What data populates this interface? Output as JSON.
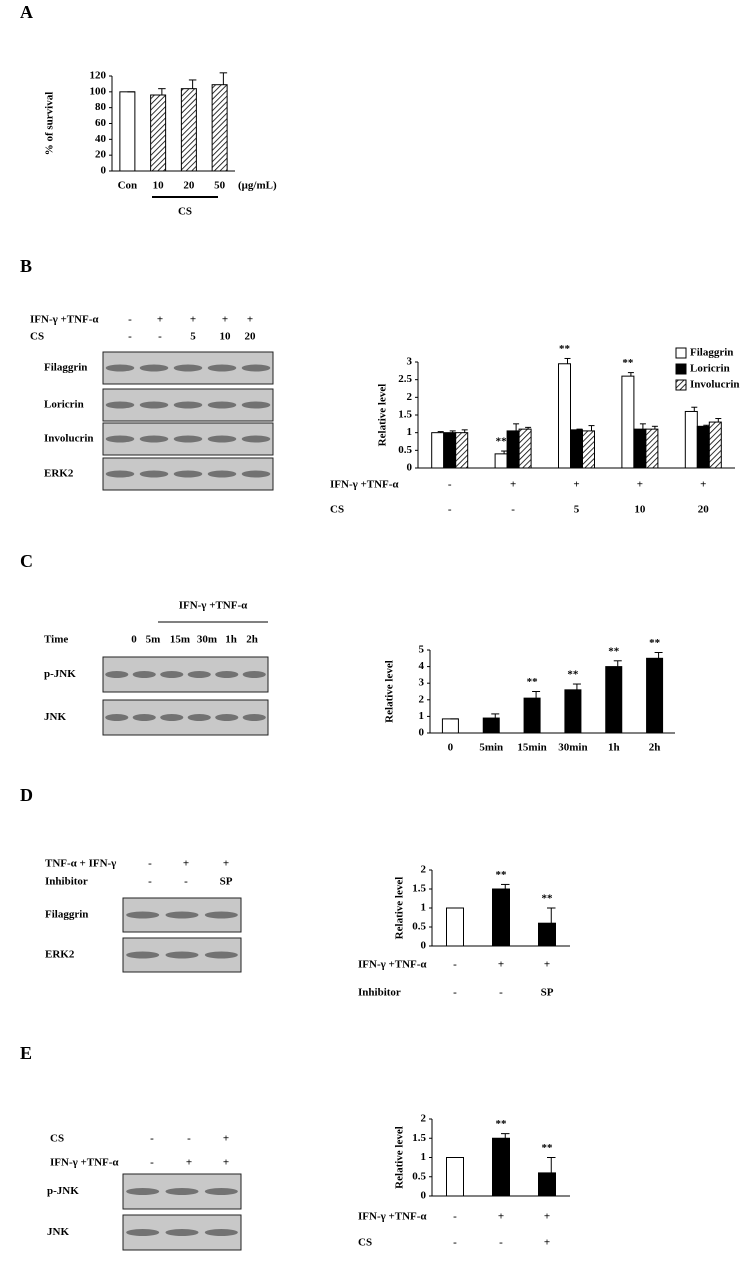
{
  "panel_labels": [
    "A",
    "B",
    "C",
    "D",
    "E"
  ],
  "chart_data": [
    {
      "type": "bar",
      "ylabel": "% of survival",
      "categories": [
        "Con",
        "10",
        "20",
        "50"
      ],
      "values": [
        100,
        96,
        104,
        109
      ],
      "errors": [
        0,
        8,
        11,
        15
      ],
      "fills": [
        "white",
        "hatch",
        "hatch",
        "hatch"
      ],
      "unit": "(μg/mL)",
      "group_label": "CS",
      "ylim": [
        0,
        120
      ],
      "yticks": [
        0,
        20,
        40,
        60,
        80,
        100,
        120
      ]
    },
    {
      "type": "bar",
      "ylabel": "Relative level",
      "series": [
        {
          "name": "Filaggrin",
          "fill": "white",
          "values": [
            1,
            0.4,
            2.95,
            2.6,
            1.6
          ],
          "errors": [
            0.03,
            0.08,
            0.15,
            0.1,
            0.12
          ],
          "stars": [
            null,
            "**",
            "**",
            "**",
            null
          ]
        },
        {
          "name": "Loricrin",
          "fill": "black",
          "values": [
            1,
            1.05,
            1.08,
            1.1,
            1.18
          ],
          "errors": [
            0.05,
            0.2,
            0.02,
            0.15,
            0.03
          ],
          "stars": [
            null,
            null,
            null,
            null,
            null
          ]
        },
        {
          "name": "Involucrin",
          "fill": "hatch",
          "values": [
            1,
            1.1,
            1.05,
            1.1,
            1.3
          ],
          "errors": [
            0.08,
            0.05,
            0.15,
            0.08,
            0.1
          ],
          "stars": [
            null,
            null,
            null,
            null,
            null
          ]
        }
      ],
      "conditions": [
        {
          "name": "IFN-γ +TNF-α",
          "values": [
            "-",
            "+",
            "+",
            "+",
            "+"
          ]
        },
        {
          "name": "CS",
          "values": [
            "-",
            "-",
            "5",
            "10",
            "20"
          ]
        }
      ],
      "legend": "upper right",
      "ylim": [
        0,
        3
      ],
      "yticks": [
        0,
        0.5,
        1,
        1.5,
        2,
        2.5,
        3
      ]
    },
    {
      "type": "bar",
      "ylabel": "Relative level",
      "categories": [
        "0",
        "5min",
        "15min",
        "30min",
        "1h",
        "2h"
      ],
      "values": [
        0.85,
        0.9,
        2.1,
        2.6,
        4.0,
        4.5
      ],
      "errors": [
        0,
        0.25,
        0.4,
        0.35,
        0.35,
        0.35
      ],
      "fills": [
        "white",
        "black",
        "black",
        "black",
        "black",
        "black"
      ],
      "stars": [
        null,
        null,
        "**",
        "**",
        "**",
        "**"
      ],
      "ylim": [
        0,
        5
      ],
      "yticks": [
        0,
        1,
        2,
        3,
        4,
        5
      ]
    },
    {
      "type": "bar",
      "ylabel": "Relative level",
      "values": [
        1,
        1.5,
        0.6
      ],
      "errors": [
        0,
        0.12,
        0.4
      ],
      "fills": [
        "white",
        "black",
        "black"
      ],
      "stars": [
        null,
        "**",
        "**"
      ],
      "conditions": [
        {
          "name": "IFN-γ +TNF-α",
          "values": [
            "-",
            "+",
            "+"
          ]
        },
        {
          "name": "Inhibitor",
          "values": [
            "-",
            "-",
            "SP"
          ]
        }
      ],
      "ylim": [
        0,
        2
      ],
      "yticks": [
        0,
        0.5,
        1,
        1.5,
        2
      ]
    },
    {
      "type": "bar",
      "ylabel": "Relative level",
      "values": [
        1,
        1.5,
        0.6
      ],
      "errors": [
        0,
        0.12,
        0.4
      ],
      "fills": [
        "white",
        "black",
        "black"
      ],
      "stars": [
        null,
        "**",
        "**"
      ],
      "conditions": [
        {
          "name": "IFN-γ +TNF-α",
          "values": [
            "-",
            "+",
            "+"
          ]
        },
        {
          "name": "CS",
          "values": [
            "-",
            "-",
            "+"
          ]
        }
      ],
      "ylim": [
        0,
        2
      ],
      "yticks": [
        0,
        0.5,
        1,
        1.5,
        2
      ]
    }
  ],
  "blots": [
    {
      "conditions": [
        {
          "name": "IFN-γ +TNF-α",
          "values": [
            "-",
            "+",
            "+",
            "+",
            "+"
          ]
        },
        {
          "name": "CS",
          "values": [
            "-",
            "-",
            "5",
            "10",
            "20"
          ]
        }
      ],
      "rows": [
        "Filaggrin",
        "Loricrin",
        "Involucrin",
        "ERK2"
      ]
    },
    {
      "title": "IFN-γ +TNF-α",
      "conditions": [
        {
          "name": "Time",
          "values": [
            "0",
            "5m",
            "15m",
            "30m",
            "1h",
            "2h"
          ]
        }
      ],
      "rows": [
        "p-JNK",
        "JNK"
      ]
    },
    {
      "conditions": [
        {
          "name": "TNF-α + IFN-γ",
          "values": [
            "-",
            "+",
            "+"
          ]
        },
        {
          "name": "Inhibitor",
          "values": [
            "-",
            "-",
            "SP"
          ]
        }
      ],
      "rows": [
        "Filaggrin",
        "ERK2"
      ]
    },
    {
      "conditions": [
        {
          "name": "CS",
          "values": [
            "-",
            "-",
            "+"
          ]
        },
        {
          "name": "IFN-γ +TNF-α",
          "values": [
            "-",
            "+",
            "+"
          ]
        }
      ],
      "rows": [
        "p-JNK",
        "JNK"
      ]
    }
  ]
}
